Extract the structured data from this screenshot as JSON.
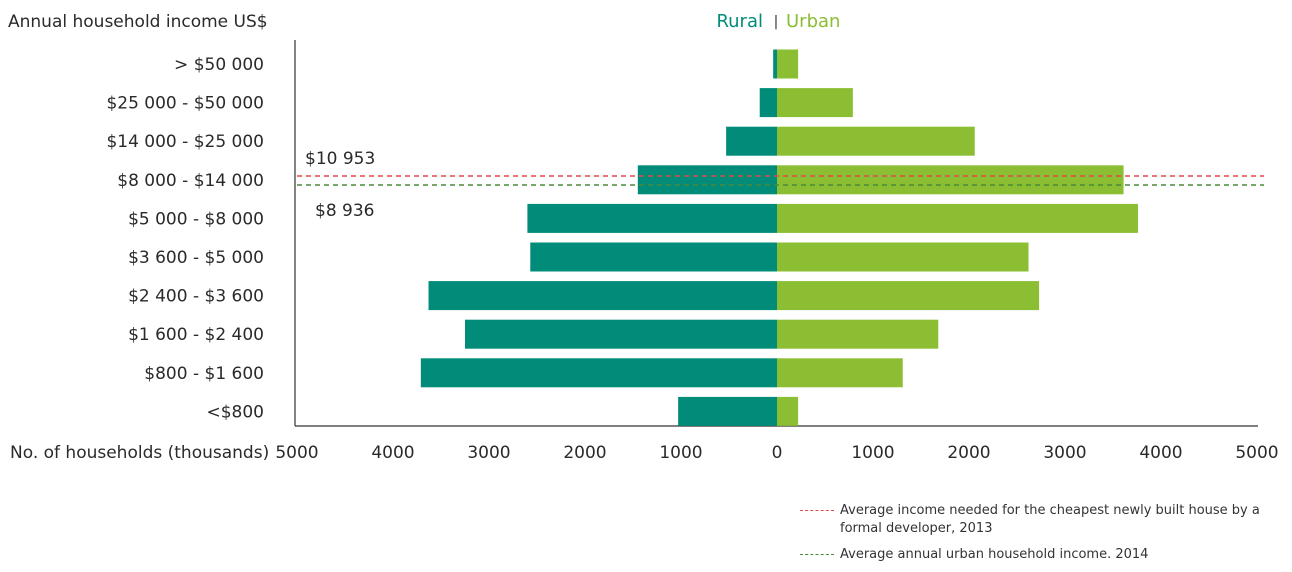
{
  "chart_data": {
    "type": "bar",
    "orientation": "horizontal",
    "ylabel": "Annual household income US$",
    "xlabel": "No. of households (thousands)",
    "xlim": [
      -5000,
      5000
    ],
    "x_ticks": [
      "5000",
      "4000",
      "3000",
      "2000",
      "1000",
      "0",
      "1000",
      "2000",
      "3000",
      "4000",
      "5000"
    ],
    "categories": [
      "> $50 000",
      "$25 000 - $50 000",
      "$14 000 - $25 000",
      "$8 000 - $14 000",
      "$5 000 - $8 000",
      "$3 600 - $5 000",
      "$2 400 - $3 600",
      "$1 600 - $2 400",
      "$800 - $1 600",
      "<$800"
    ],
    "series": [
      {
        "name": "Rural",
        "color": "#008c78",
        "values": [
          40,
          180,
          530,
          1450,
          2600,
          2570,
          3630,
          3250,
          3710,
          1030
        ]
      },
      {
        "name": "Urban",
        "color": "#8bbe32",
        "values": [
          220,
          790,
          2060,
          3610,
          3760,
          2620,
          2730,
          1680,
          1310,
          220
        ]
      }
    ],
    "reference_lines": [
      {
        "label": "$10 953",
        "color": "#e24a4a",
        "legend": "Average income needed for the cheapest newly built house by a formal developer, 2013"
      },
      {
        "label": "$8 936",
        "color": "#4a8a3a",
        "legend": "Average annual urban household income. 2014"
      }
    ],
    "legend_divider": "|"
  }
}
